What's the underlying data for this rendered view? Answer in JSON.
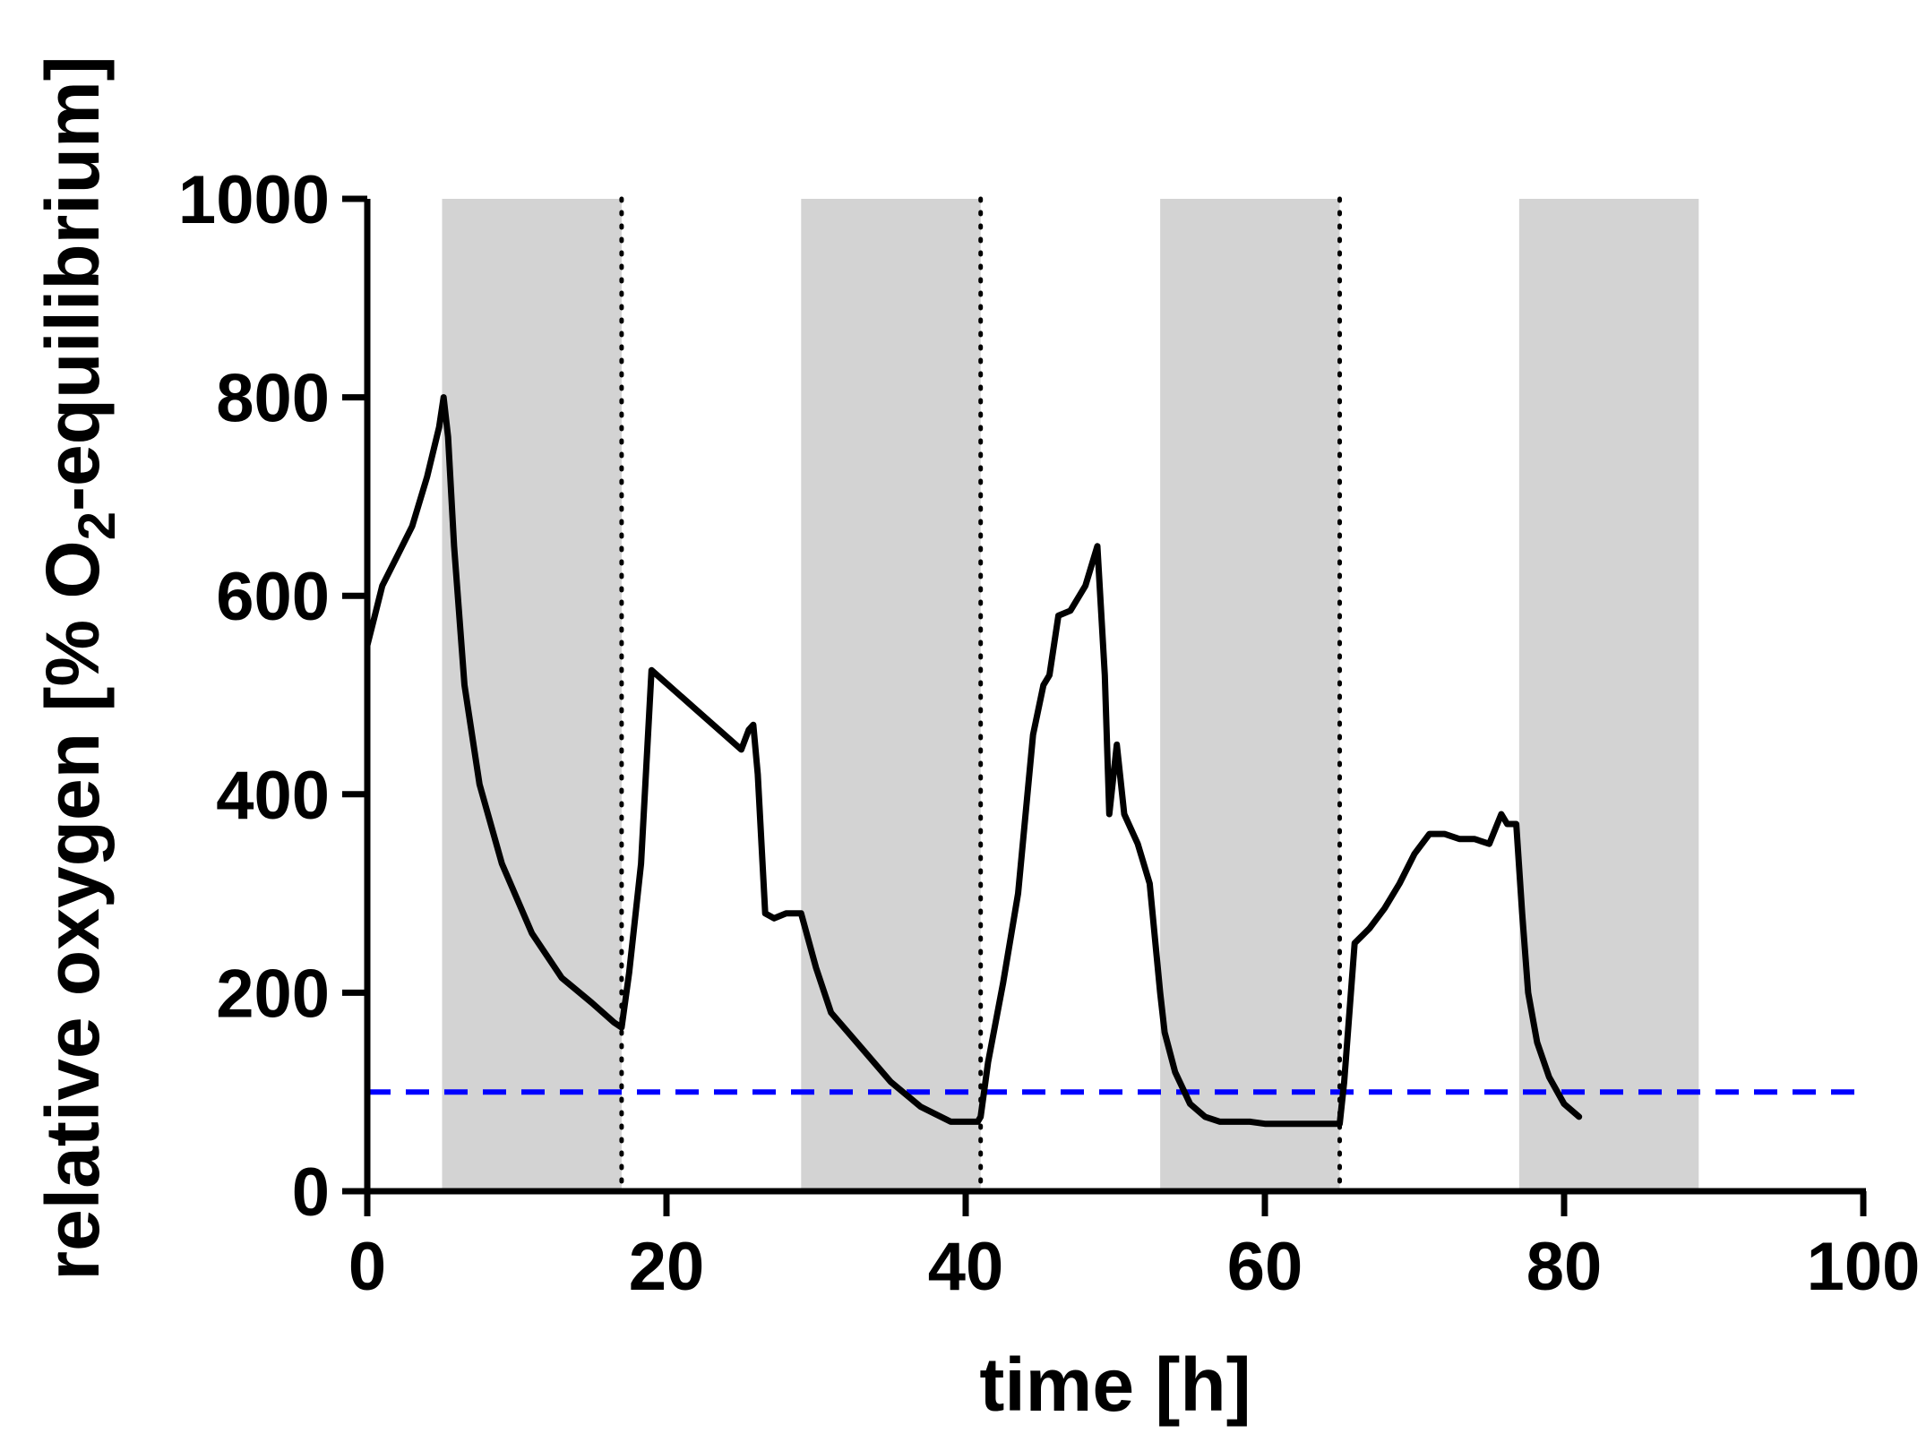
{
  "chart_data": {
    "type": "line",
    "title": "",
    "xlabel": "time [h]",
    "ylabel": {
      "prefix": "relative oxygen [% O",
      "subscript": "2",
      "suffix": "-equilibrium]"
    },
    "xlim": [
      0,
      100
    ],
    "ylim": [
      0,
      1000
    ],
    "xticks": [
      0,
      20,
      40,
      60,
      80,
      100
    ],
    "yticks": [
      0,
      200,
      400,
      600,
      800,
      1000
    ],
    "grid": false,
    "colors": {
      "line": "#000000",
      "reference": "#0000ff",
      "shade": "#d3d3d3",
      "axis": "#000000",
      "divider": "#000000"
    },
    "shaded_intervals": [
      [
        5,
        17
      ],
      [
        29,
        41
      ],
      [
        53,
        65
      ],
      [
        77,
        89
      ]
    ],
    "vertical_dotted_lines": [
      17,
      41,
      65
    ],
    "reference_line": {
      "y": 100,
      "style": "dashed"
    },
    "series": [
      {
        "name": "relative oxygen",
        "x": [
          0,
          0.5,
          1,
          2,
          3,
          4,
          4.8,
          5.1,
          5.4,
          5.8,
          6.5,
          7.5,
          9,
          11,
          13,
          15,
          16.5,
          17,
          17.5,
          18.3,
          19,
          22,
          25,
          25.5,
          25.8,
          26.1,
          26.6,
          27.2,
          28,
          29,
          30,
          31,
          33,
          35,
          37,
          39,
          40,
          40.8,
          41,
          41.5,
          42.5,
          43.5,
          44.5,
          45.2,
          45.6,
          46.2,
          47,
          48,
          48.8,
          49.3,
          49.6,
          50.1,
          50.6,
          51.5,
          52.3,
          53,
          53.3,
          54,
          55,
          56,
          57,
          58,
          59,
          60,
          62,
          64,
          65,
          65.3,
          66,
          67,
          68,
          69,
          70,
          71,
          72,
          73,
          74,
          75,
          75.8,
          76.2,
          76.8,
          77.2,
          77.6,
          78.2,
          79,
          80,
          81
        ],
        "values": [
          550,
          580,
          610,
          640,
          670,
          720,
          770,
          800,
          760,
          650,
          510,
          410,
          330,
          260,
          215,
          190,
          170,
          165,
          220,
          330,
          525,
          485,
          445,
          465,
          470,
          420,
          280,
          275,
          280,
          280,
          225,
          180,
          145,
          110,
          85,
          70,
          70,
          70,
          75,
          130,
          210,
          300,
          460,
          510,
          520,
          580,
          585,
          610,
          650,
          520,
          380,
          450,
          380,
          350,
          310,
          200,
          160,
          120,
          88,
          75,
          70,
          70,
          70,
          68,
          68,
          68,
          68,
          110,
          250,
          265,
          285,
          310,
          340,
          360,
          360,
          355,
          355,
          350,
          380,
          370,
          370,
          280,
          200,
          150,
          115,
          88,
          75
        ]
      }
    ]
  }
}
